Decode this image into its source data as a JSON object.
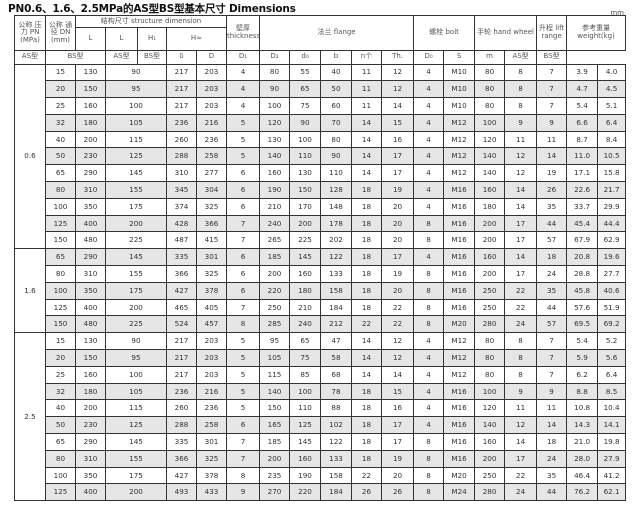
{
  "title": "PN0.6、1.6、2.5MPa的AS型BS型基本尺寸  Dimensions",
  "unit": "mm",
  "header": {
    "pn": "公称 压力 PN (MPa)",
    "dn": "公称 通径 DN (mm)",
    "structure": "结构尺寸 structure dimension",
    "L_as": "L",
    "L_bs": "L",
    "H1": "H₁",
    "H": "H≈",
    "thickness": "壁厚 thickness",
    "thickness_sym": "δ",
    "flange": "法兰 flange",
    "bolt": "螺栓 bolt",
    "handwheel": "手轮 hand wheel",
    "lift": "升程 lift range",
    "lift_sym": "m",
    "weight": "参考重量 weight(kg)",
    "as": "AS型",
    "bs": "BS型",
    "as2": "AS型",
    "bs2": "BS型",
    "as3": "AS型",
    "bs3": "BS型",
    "D": "D",
    "D1": "D₁",
    "D2": "D₂",
    "d0": "d₀",
    "b": "b",
    "n": "n个",
    "th": "Th.",
    "D0": "D₀",
    "S": "S"
  },
  "groups": [
    {
      "pn": "0.6",
      "rows": [
        [
          "15",
          "130",
          "90",
          "217",
          "203",
          "4",
          "80",
          "55",
          "40",
          "11",
          "12",
          "4",
          "M10",
          "80",
          "8",
          "7",
          "3.9",
          "4.0"
        ],
        [
          "20",
          "150",
          "95",
          "217",
          "203",
          "4",
          "90",
          "65",
          "50",
          "11",
          "12",
          "4",
          "M10",
          "80",
          "8",
          "7",
          "4.7",
          "4.5"
        ],
        [
          "25",
          "160",
          "100",
          "217",
          "203",
          "4",
          "100",
          "75",
          "60",
          "11",
          "14",
          "4",
          "M10",
          "80",
          "8",
          "7",
          "5.4",
          "5.1"
        ],
        [
          "32",
          "180",
          "105",
          "236",
          "216",
          "5",
          "120",
          "90",
          "70",
          "14",
          "15",
          "4",
          "M12",
          "100",
          "9",
          "9",
          "6.6",
          "6.4"
        ],
        [
          "40",
          "200",
          "115",
          "260",
          "236",
          "5",
          "130",
          "100",
          "80",
          "14",
          "16",
          "4",
          "M12",
          "120",
          "11",
          "11",
          "8.7",
          "8.4"
        ],
        [
          "50",
          "230",
          "125",
          "288",
          "258",
          "5",
          "140",
          "110",
          "90",
          "14",
          "17",
          "4",
          "M12",
          "140",
          "12",
          "14",
          "11.0",
          "10.5"
        ],
        [
          "65",
          "290",
          "145",
          "310",
          "277",
          "6",
          "160",
          "130",
          "110",
          "14",
          "17",
          "4",
          "M12",
          "140",
          "12",
          "19",
          "17.1",
          "15.8"
        ],
        [
          "80",
          "310",
          "155",
          "345",
          "304",
          "6",
          "190",
          "150",
          "128",
          "18",
          "19",
          "4",
          "M16",
          "160",
          "14",
          "26",
          "22.6",
          "21.7"
        ],
        [
          "100",
          "350",
          "175",
          "374",
          "325",
          "6",
          "210",
          "170",
          "148",
          "18",
          "20",
          "4",
          "M16",
          "180",
          "14",
          "35",
          "33.7",
          "29.9"
        ],
        [
          "125",
          "400",
          "200",
          "428",
          "366",
          "7",
          "240",
          "200",
          "178",
          "18",
          "20",
          "8",
          "M16",
          "200",
          "17",
          "44",
          "45.4",
          "44.4"
        ],
        [
          "150",
          "480",
          "225",
          "487",
          "415",
          "7",
          "265",
          "225",
          "202",
          "18",
          "20",
          "8",
          "M16",
          "200",
          "17",
          "57",
          "67.9",
          "62.9"
        ]
      ]
    },
    {
      "pn": "1.6",
      "rows": [
        [
          "65",
          "290",
          "145",
          "335",
          "301",
          "6",
          "185",
          "145",
          "122",
          "18",
          "17",
          "4",
          "M16",
          "160",
          "14",
          "18",
          "20.8",
          "19.6"
        ],
        [
          "80",
          "310",
          "155",
          "366",
          "325",
          "6",
          "200",
          "160",
          "133",
          "18",
          "19",
          "8",
          "M16",
          "200",
          "17",
          "24",
          "28.8",
          "27.7"
        ],
        [
          "100",
          "350",
          "175",
          "427",
          "378",
          "6",
          "220",
          "180",
          "158",
          "18",
          "20",
          "8",
          "M16",
          "250",
          "22",
          "35",
          "45.8",
          "40.6"
        ],
        [
          "125",
          "400",
          "200",
          "465",
          "405",
          "7",
          "250",
          "210",
          "184",
          "18",
          "22",
          "8",
          "M16",
          "250",
          "22",
          "44",
          "57.6",
          "51.9"
        ],
        [
          "150",
          "480",
          "225",
          "524",
          "457",
          "8",
          "285",
          "240",
          "212",
          "22",
          "22",
          "8",
          "M20",
          "280",
          "24",
          "57",
          "69.5",
          "69.2"
        ]
      ]
    },
    {
      "pn": "2.5",
      "rows": [
        [
          "15",
          "130",
          "90",
          "217",
          "203",
          "5",
          "95",
          "65",
          "47",
          "14",
          "12",
          "4",
          "M12",
          "80",
          "8",
          "7",
          "5.4",
          "5.2"
        ],
        [
          "20",
          "150",
          "95",
          "217",
          "203",
          "5",
          "105",
          "75",
          "58",
          "14",
          "12",
          "4",
          "M12",
          "80",
          "8",
          "7",
          "5.9",
          "5.6"
        ],
        [
          "25",
          "160",
          "100",
          "217",
          "203",
          "5",
          "115",
          "85",
          "68",
          "14",
          "14",
          "4",
          "M12",
          "80",
          "8",
          "7",
          "6.2",
          "6.4"
        ],
        [
          "32",
          "180",
          "105",
          "236",
          "216",
          "5",
          "140",
          "100",
          "78",
          "18",
          "15",
          "4",
          "M16",
          "100",
          "9",
          "9",
          "8.8",
          "8.5"
        ],
        [
          "40",
          "200",
          "115",
          "260",
          "236",
          "5",
          "150",
          "110",
          "88",
          "18",
          "16",
          "4",
          "M16",
          "120",
          "11",
          "11",
          "10.8",
          "10.4"
        ],
        [
          "50",
          "230",
          "125",
          "288",
          "258",
          "6",
          "165",
          "125",
          "102",
          "18",
          "17",
          "4",
          "M16",
          "140",
          "12",
          "14",
          "14.3",
          "14.1"
        ],
        [
          "65",
          "290",
          "145",
          "335",
          "301",
          "7",
          "185",
          "145",
          "122",
          "18",
          "17",
          "8",
          "M16",
          "160",
          "14",
          "18",
          "21.0",
          "19.8"
        ],
        [
          "80",
          "310",
          "155",
          "366",
          "325",
          "7",
          "200",
          "160",
          "133",
          "18",
          "19",
          "8",
          "M16",
          "200",
          "17",
          "24",
          "28.0",
          "27.9"
        ],
        [
          "100",
          "350",
          "175",
          "427",
          "378",
          "8",
          "235",
          "190",
          "158",
          "22",
          "20",
          "8",
          "M20",
          "250",
          "22",
          "35",
          "46.4",
          "41.2"
        ],
        [
          "125",
          "400",
          "200",
          "493",
          "433",
          "9",
          "270",
          "220",
          "184",
          "26",
          "26",
          "8",
          "M24",
          "280",
          "24",
          "44",
          "76.2",
          "62.1"
        ]
      ]
    }
  ]
}
